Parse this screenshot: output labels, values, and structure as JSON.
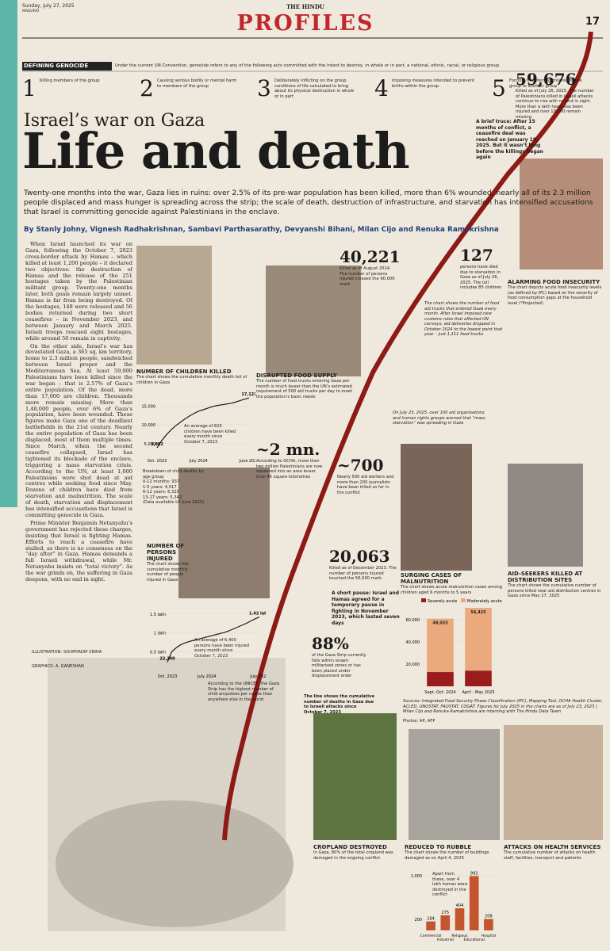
{
  "header": {
    "date": "Sunday, July 27, 2025",
    "edition": "MADURAI",
    "paper": "THE HINDU",
    "section": "PROFILES",
    "page": "17"
  },
  "defining": {
    "label": "DEFINING GENOCIDE",
    "intro": "Under the current UN Convention, genocide refers to any of the following acts committed with the intent to destroy, in whole or in part, a national, ethnic, racial, or religious group",
    "items": [
      {
        "num": "1",
        "text": "Killing members of the group"
      },
      {
        "num": "2",
        "text": "Causing serious bodily or mental harm to members of the group"
      },
      {
        "num": "3",
        "text": "Deliberately inflicting on the group conditions of life calculated to bring about its physical destruction in whole or in part"
      },
      {
        "num": "4",
        "text": "Imposing measures intended to prevent births within the group"
      },
      {
        "num": "5",
        "text": "Forcibly transferring children of the group to another group"
      }
    ]
  },
  "headline": {
    "kicker": "Israel’s war on Gaza",
    "title": "Life and death",
    "deck": "Twenty-one months into the war, Gaza lies in ruins: over 2.5% of its pre-war population has been killed, more than 6% wounded, nearly all of its 2.3 million people displaced and mass hunger is spreading across the strip; the scale of death, destruction of infrastructure, and starvation has intensified accusations that Israel is committing genocide against Palestinians in the enclave.",
    "byline": "By Stanly Johny, Vignesh Radhakrishnan, Sambavi Parthasarathy, Devyanshi Bihani, Milan Cijo and Renuka Ramakrishna"
  },
  "body": [
    "When Israel launched its war on Gaza, following the October 7, 2023 cross-border attack by Hamas – which killed at least 1,200 people – it declared two objectives: the destruction of Hamas and the release of the 251 hostages taken by the Palestinian militant group. Twenty-one months later, both goals remain largely unmet. Hamas is far from being destroyed. Of the hostages, 148 were released and 56 bodies returned during two short ceasefires – in November 2023, and between January and March 2025. Israeli troops rescued eight hostages, while around 50 remain in captivity.",
    "On the other side, Israel’s war has devastated Gaza, a 365 sq. km territory, home to 2.3 million people, sandwiched between Israel proper and the Mediterranean Sea. At least 59,000 Palestinians have been killed since the war began – that is 2.57% of Gaza’s entire population. Of the dead, more than 17,000 are children. Thousands more remain missing. More than 1,40,000 people, over 6% of Gaza’s population, have been wounded. These figures make Gaza one of the deadliest battlefields in the 21st century. Nearly the entire population of Gaza has been displaced, most of them multiple times. Since March, when the second ceasefire collapsed, Israel has tightened its blockade of the enclave, triggering a mass starvation crisis. According to the UN, at least 1,000 Palestinians were shot dead at aid centres while seeking food since May. Dozens of children have died from starvation and malnutrition. The scale of death, starvation and displacement has intensified accusations that Israel is committing genocide in Gaza.",
    "Prime Minister Benjamin Netanyahu’s government has rejected these charges, insisting that Israel is fighting Hamas. Efforts to reach a ceasefire have stalled, as there is no consensus on the “day after” in Gaza. Hamas demands a full Israeli withdrawal, while Mr. Netanyahu insists on “total victory”. As the war grinds on, the suffering in Gaza deepens, with no end in sight."
  ],
  "credits": {
    "illustration": "ILLUSTRATION: SOUMYADIP SINHA",
    "graphics": "GRAPHICS: A. GANESHAN"
  },
  "stats": [
    {
      "value": "59,676",
      "text": "Killed as of July 26, 2025. The number of Palestinians killed in Israeli attacks continue to rise with no end in sight. More than a lakh have also been injured and over 10,000 remain missing"
    },
    {
      "value": "40,221",
      "text": "Killed as of August 2024. The number of persons injured crossed the 90,000 mark"
    },
    {
      "value": "127",
      "text": "persons have died due to starvation in Gaza as of July 26, 2025. The toll includes 85 children"
    },
    {
      "value": "20,063",
      "text": "Killed as of December 2023. The number of persons injured touched the 56,000 mark"
    },
    {
      "value": "~2 mn.",
      "text": "According to OCHA, more than two million Palestinians are now squeezed into an area lesser than 45 square kilometres"
    },
    {
      "value": "~700",
      "text": "Nearly 500 aid workers and more than 200 journalists have been killed so far in the conflict"
    },
    {
      "value": "88%",
      "text": "of the Gaza Strip currently falls within Israeli-militarised zones or has been placed under displacement order"
    }
  ],
  "notes": {
    "truce": "A brief truce: After 15 months of conflict, a ceasefire deal was reached on January 19, 2025. But it wasn’t long before the killings began again",
    "pause": "A short pause: Israel and Hamas agreed for a temporary pause in fighting in November 2023, which lasted seven days",
    "unicef": "According to the UNICEF, the Gaza Strip has the highest number of child amputees per capita than anywhere else in the world",
    "line": "The line shows the cumulative number of deaths in Gaza due to Israeli attacks since October 7, 2023",
    "trucks": "The chart shows the number of food aid trucks that entered Gaza every month. After Israel imposed new customs rules that affected UN convoys, aid deliveries dropped in October 2024 to the lowest point that year – just 1,111 food trucks",
    "starvation": "On July 23, 2025, over 100 aid organisations and human rights groups warned that “mass starvation” was spreading in Gaza",
    "sources": "Sources: Integrated Food Security Phase Classification (IPC), Mapping Tool, OCHA Health Cluster, ACLED, UNOSTAT, FAOSTAT, COGAT. Figures for July 2025 in the charts are as of July 23, 2025 | Milan Cijo and Renuka Ramakrishna are interning with The Hindu Data Team",
    "photos": "Photos: AP, AFP"
  },
  "sections": [
    {
      "title": "DISRUPTED FOOD SUPPLY",
      "text": "The number of food trucks entering Gaza per month is much lesser than the UN’s estimated requirement of 500 aid trucks per day to meet the population’s basic needs"
    },
    {
      "title": "ALARMING FOOD INSECURITY",
      "text": "The chart depicts acute food insecurity levels (as defined by IPC) based on the severity of food consumption gaps at the household level (*Projected)"
    },
    {
      "title": "AID-SEEKERS KILLED AT DISTRIBUTION SITES",
      "text": "The chart shows the cumulative number of persons killed near aid distribution centres in Gaza since May 27, 2025"
    },
    {
      "title": "CROPLAND DESTROYED",
      "text": "In Gaza, 80% of the total cropland was damaged in the ongoing conflict"
    },
    {
      "title": "ATTACKS ON HEALTH SERVICES",
      "text": "The cumulative number of attacks on health staff, facilities, transport and patients"
    }
  ],
  "charts": {
    "children": {
      "type": "line",
      "title": "NUMBER OF CHILDREN KILLED",
      "subtitle": "The chart shows the cumulative monthly death toll of children in Gaza",
      "categories": [
        "Oct. 2023",
        null,
        null,
        null,
        null,
        null,
        null,
        null,
        null,
        "July 2024",
        null,
        null,
        null,
        null,
        null,
        null,
        null,
        null,
        null,
        null,
        "June 2025"
      ],
      "values": [
        3882,
        5800,
        7300,
        8600,
        9700,
        10600,
        11500,
        12300,
        13000,
        13600,
        14000,
        14400,
        14800,
        15100,
        15300,
        15500,
        15700,
        16000,
        16400,
        16800,
        17121
      ],
      "value_labels": [
        "3,882",
        null,
        null,
        null,
        null,
        null,
        null,
        null,
        null,
        null,
        null,
        null,
        null,
        null,
        null,
        null,
        null,
        null,
        null,
        null,
        "17,121"
      ],
      "ylim": [
        2000,
        18000
      ],
      "yticks": [
        {
          "value": 5000,
          "label": "5,000"
        },
        {
          "value": 10000,
          "label": "10,000"
        },
        {
          "value": 15000,
          "label": "15,000"
        }
      ],
      "color": "#1a1a1a",
      "annotation": "An average of 815 children have been killed every month since October 7, 2023",
      "breakdown": [
        "Breakdown of child deaths by age group",
        "0-12 months: 937",
        "1-5 years: 4,517",
        "6-12 years: 6,325",
        "13-17 years: 5,342",
        "(Data available till June 2025)"
      ]
    },
    "injured": {
      "type": "line",
      "title": "NUMBER OF PERSONS INJURED",
      "subtitle": "The chart shows the cumulative monthly number of people injured in Gaza",
      "categories": [
        "Oct. 2023",
        null,
        null,
        null,
        null,
        null,
        null,
        null,
        null,
        "July 2024",
        null,
        null,
        null,
        null,
        null,
        null,
        null,
        null,
        null,
        null,
        null,
        "July 2025"
      ],
      "values": [
        22240,
        50000,
        60000,
        68000,
        73000,
        77000,
        80000,
        83000,
        86000,
        89000,
        92000,
        95000,
        98000,
        101000,
        105000,
        110000,
        115000,
        120000,
        125000,
        131000,
        137000,
        142000
      ],
      "value_labels": [
        "22,240",
        null,
        null,
        null,
        null,
        null,
        null,
        null,
        null,
        null,
        null,
        null,
        null,
        null,
        null,
        null,
        null,
        null,
        null,
        null,
        null,
        "1.42 lakh"
      ],
      "ylim": [
        0,
        160000
      ],
      "yticks": [
        {
          "value": 50000,
          "label": "0.5 lakh"
        },
        {
          "value": 100000,
          "label": "1 lakh"
        },
        {
          "value": 150000,
          "label": "1.5 lakh"
        }
      ],
      "color": "#1a1a1a",
      "annotation": "An average of 6,400 persons have been injured every month since October 7, 2023"
    },
    "malnutrition": {
      "type": "stacked_bar",
      "title": "SURGING CASES OF MALNUTRITION",
      "subtitle": "The chart shows acute malnutrition cases among children aged 6 months to 5 years",
      "categories": [
        "Sept.-Oct. 2024",
        "April - May 2025"
      ],
      "series": [
        {
          "name": "Severely acute",
          "color": "#9b1c1c",
          "values": [
            12808,
            14106
          ],
          "value_labels": [
            "12,808",
            "14,106"
          ]
        },
        {
          "name": "Moderately acute",
          "color": "#eba97e",
          "values": [
            48033,
            56425
          ],
          "value_labels": [
            "48,033",
            "56,425"
          ]
        }
      ],
      "ylim": [
        0,
        72000
      ],
      "yticks": [
        {
          "value": 20000,
          "label": "20,000"
        },
        {
          "value": 40000,
          "label": "40,000"
        },
        {
          "value": 60000,
          "label": "60,000"
        }
      ]
    },
    "rubble": {
      "type": "bar",
      "title": "REDUCED TO RUBBLE",
      "subtitle": "The chart shows the number of buildings damaged as on April 4, 2025",
      "categories": [
        "Commercial",
        "Industrial",
        "Religious",
        "Educational",
        "Hospital"
      ],
      "values": [
        164,
        275,
        404,
        993,
        208
      ],
      "color": "#c4552f",
      "ylim": [
        0,
        1100
      ],
      "yticks": [
        200,
        {
          "value": 1000,
          "label": "1,000"
        }
      ],
      "annotation": "Apart from these, over 4 lakh homes were destroyed in the conflict"
    }
  }
}
